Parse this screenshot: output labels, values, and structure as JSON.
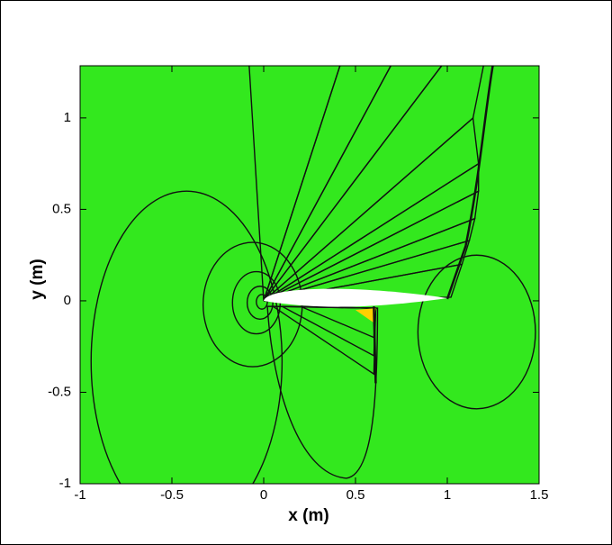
{
  "chart_data": {
    "type": "contour",
    "xlabel": "x (m)",
    "ylabel": "y (m)",
    "xlim": [
      -1,
      1.5
    ],
    "ylim": [
      -1,
      1.285
    ],
    "xticks": [
      -1,
      -0.5,
      0,
      0.5,
      1,
      1.5
    ],
    "yticks": [
      -1,
      -0.5,
      0,
      0.5,
      1
    ]
  }
}
